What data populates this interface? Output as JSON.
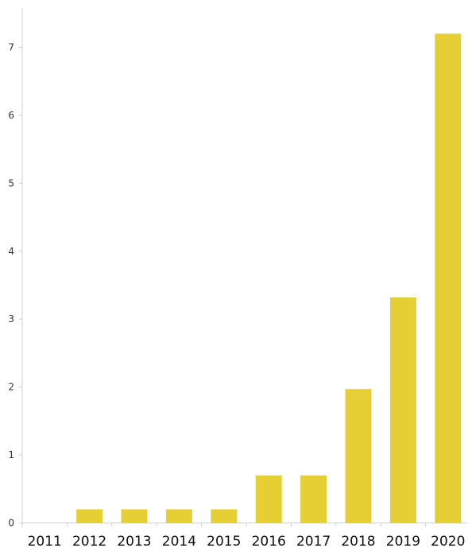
{
  "chart_data": {
    "type": "bar",
    "categories": [
      "2011",
      "2012",
      "2013",
      "2014",
      "2015",
      "2016",
      "2017",
      "2018",
      "2019",
      "2020"
    ],
    "values": [
      0,
      0.2,
      0.2,
      0.2,
      0.2,
      0.7,
      0.7,
      1.97,
      3.32,
      7.2
    ],
    "title": "",
    "xlabel": "",
    "ylabel": "",
    "ylim": [
      0,
      7
    ],
    "yticks": [
      "0",
      "1",
      "2",
      "3",
      "4",
      "5",
      "6",
      "7"
    ],
    "grid": false,
    "legend": "none",
    "colors": {
      "bar": "#e6cf35",
      "axis": "#cfcfcf"
    }
  }
}
